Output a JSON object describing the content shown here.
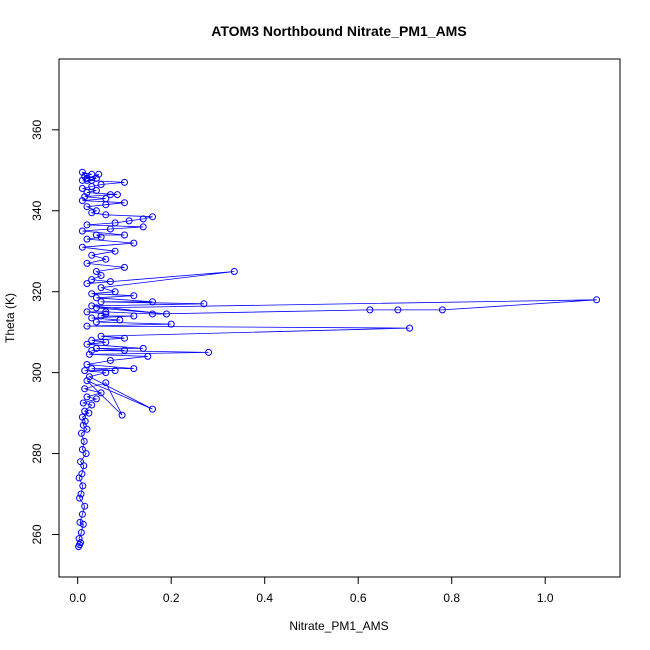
{
  "chart_data": {
    "type": "scatter",
    "title": "ATOM3 Northbound Nitrate_PM1_AMS",
    "xlabel": "Nitrate_PM1_AMS",
    "ylabel": "Theta (K)",
    "xlim": [
      -0.04,
      1.16
    ],
    "ylim": [
      249.5,
      377.5
    ],
    "xticks": [
      0.0,
      0.2,
      0.4,
      0.6,
      0.8,
      1.0
    ],
    "xtick_labels": [
      "0.0",
      "0.2",
      "0.4",
      "0.6",
      "0.8",
      "1.0"
    ],
    "yticks": [
      260,
      280,
      300,
      320,
      340,
      360
    ],
    "ytick_labels": [
      "260",
      "280",
      "300",
      "320",
      "340",
      "360"
    ],
    "grid": false,
    "marker": "open-circle",
    "connect_points": true,
    "color": "#0000ff",
    "series": [
      {
        "x": [
          0.002,
          0.004,
          0.006,
          0.003,
          0.008,
          0.012,
          0.005,
          0.01,
          0.015,
          0.004,
          0.007,
          0.011,
          0.003,
          0.009,
          0.013,
          0.006,
          0.018,
          0.01,
          0.014,
          0.008,
          0.02,
          0.012,
          0.016,
          0.01,
          0.024,
          0.015,
          0.03,
          0.012,
          0.04,
          0.02,
          0.05,
          0.015,
          0.06,
          0.095,
          0.02,
          0.16,
          0.025,
          0.06,
          0.015,
          0.08,
          0.03,
          0.12,
          0.02,
          0.07,
          0.15,
          0.025,
          0.28,
          0.03,
          0.1,
          0.04,
          0.14,
          0.02,
          0.06,
          0.03,
          0.1,
          0.05,
          0.71,
          0.02,
          0.2,
          0.04,
          0.09,
          0.03,
          0.12,
          0.05,
          0.06,
          0.02,
          0.06,
          0.16,
          0.625,
          0.685,
          0.78,
          1.11,
          0.04,
          0.19,
          0.03,
          0.27,
          0.05,
          0.16,
          0.04,
          0.12,
          0.03,
          0.08,
          0.05,
          0.335,
          0.02,
          0.07,
          0.03,
          0.05,
          0.04,
          0.1,
          0.02,
          0.06,
          0.03,
          0.08,
          0.01,
          0.12,
          0.02,
          0.05,
          0.04,
          0.1,
          0.01,
          0.07,
          0.14,
          0.02,
          0.08,
          0.11,
          0.14,
          0.16,
          0.06,
          0.03,
          0.04,
          0.02,
          0.06,
          0.1,
          0.01,
          0.06,
          0.015,
          0.07,
          0.085,
          0.02,
          0.04,
          0.01,
          0.03,
          0.05,
          0.1,
          0.02,
          0.04,
          0.015,
          0.03,
          0.01,
          0.02,
          0.03,
          0.045,
          0.02,
          0.01
        ],
        "y": [
          257,
          257.5,
          258,
          259,
          260.5,
          262.5,
          263,
          265,
          267,
          269,
          270,
          272,
          274,
          275,
          277,
          278,
          280,
          281,
          283,
          285,
          286,
          287,
          288,
          289,
          290,
          290.5,
          292,
          292.5,
          293.5,
          294,
          295,
          296,
          297.5,
          289.5,
          298,
          291,
          299,
          300,
          300.5,
          300.5,
          301,
          301,
          302,
          303,
          304,
          304.5,
          305,
          305.5,
          305.5,
          306,
          306,
          307,
          307.5,
          308,
          308.5,
          309,
          311,
          311.5,
          312,
          312.5,
          313,
          313.5,
          314,
          314,
          314.5,
          315,
          315,
          314.5,
          315.5,
          315.5,
          315.5,
          318,
          316,
          314.5,
          316.5,
          317,
          317.5,
          317.5,
          318.5,
          319,
          319.5,
          320,
          321,
          325,
          322,
          322.5,
          323,
          324,
          325,
          326,
          327,
          328,
          329,
          330,
          331,
          332,
          333,
          333.5,
          334,
          334,
          335,
          335.5,
          336,
          336.5,
          337,
          337.5,
          338,
          338.5,
          339,
          339.5,
          340,
          341,
          341.5,
          342,
          342.5,
          343,
          343.5,
          344,
          344,
          344.5,
          345,
          345.5,
          346,
          346.5,
          347,
          347.5,
          348,
          348.5,
          349,
          349.5,
          348,
          347.5,
          349,
          348,
          347.5
        ]
      }
    ]
  }
}
